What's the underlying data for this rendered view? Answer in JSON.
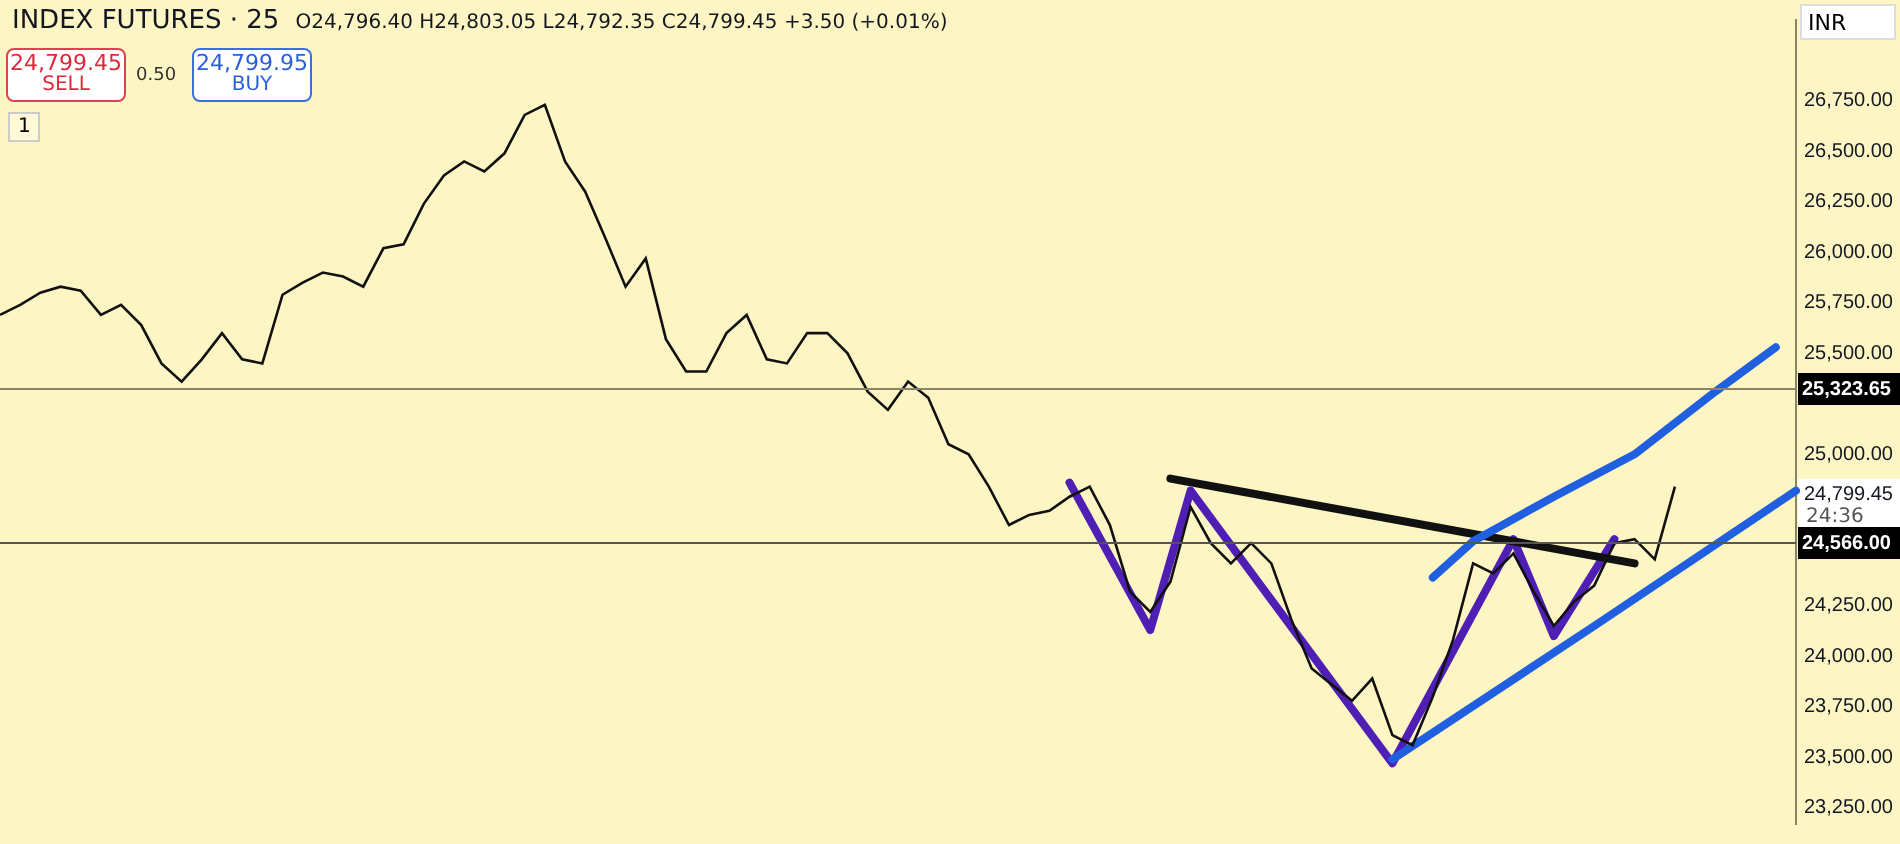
{
  "chart_data": {
    "type": "line",
    "title": "INDEX FUTURES · 25",
    "subtitle": "O24,796.40 H24,803.05 L24,792.35 C24,799.45 +3.50 (+0.01%)",
    "categories": [
      null,
      null,
      null,
      null,
      null,
      null,
      null,
      null,
      null,
      null,
      null,
      null,
      null,
      null,
      null,
      null,
      null,
      null,
      null,
      null,
      null,
      null,
      null,
      null,
      null,
      null,
      null,
      null,
      null,
      null,
      null,
      null,
      null,
      null,
      null,
      null,
      null,
      null,
      null,
      null,
      null,
      null,
      null,
      null,
      null,
      null,
      null,
      null,
      null,
      null,
      null,
      null,
      null,
      null,
      null,
      null,
      null,
      null,
      null,
      null,
      null,
      null,
      null,
      null,
      null,
      null,
      null,
      null,
      null,
      null,
      null,
      null,
      null,
      null,
      null,
      null,
      null,
      null,
      null,
      null,
      null,
      null,
      null,
      null,
      null,
      null,
      null,
      null,
      null,
      null
    ],
    "series": [
      {
        "color": "#111111",
        "values": [
          25690,
          25740,
          25800,
          25830,
          25810,
          25690,
          25740,
          25640,
          25450,
          25360,
          25470,
          25600,
          25470,
          25450,
          25790,
          25850,
          25900,
          25880,
          25830,
          26020,
          26040,
          26240,
          26380,
          26450,
          26400,
          26490,
          26680,
          26730,
          26450,
          26300,
          26070,
          25830,
          25970,
          25570,
          25410,
          25410,
          25600,
          25690,
          25470,
          25450,
          25600,
          25600,
          25500,
          25310,
          25220,
          25360,
          25280,
          25050,
          25000,
          24840,
          24650,
          24700,
          24720,
          24790,
          24840,
          24650,
          24320,
          24220,
          24370,
          24740,
          24560,
          24460,
          24560,
          24460,
          24180,
          23940,
          23860,
          23780,
          23890,
          23610,
          23560,
          23800,
          24080,
          24460,
          24410,
          24510,
          24320,
          24150,
          24270,
          24350,
          24560,
          24580,
          24480,
          24840,
          null,
          null,
          null,
          null,
          null,
          null
        ]
      },
      {
        "color": "#4f1fb5",
        "values": [
          null,
          null,
          null,
          null,
          null,
          null,
          null,
          null,
          null,
          null,
          null,
          null,
          null,
          null,
          null,
          null,
          null,
          null,
          null,
          null,
          null,
          null,
          null,
          null,
          null,
          null,
          null,
          null,
          null,
          null,
          null,
          null,
          null,
          null,
          null,
          null,
          null,
          null,
          null,
          null,
          null,
          null,
          null,
          null,
          null,
          null,
          null,
          null,
          null,
          null,
          null,
          null,
          null,
          24860,
          null,
          null,
          null,
          24130,
          null,
          24820,
          null,
          null,
          null,
          null,
          null,
          null,
          null,
          null,
          null,
          23470,
          null,
          null,
          null,
          null,
          null,
          24580,
          null,
          24100,
          null,
          null,
          24580,
          null,
          null,
          null,
          null,
          null,
          null,
          null,
          null,
          null
        ]
      },
      {
        "color": "#111111",
        "values": [
          null,
          null,
          null,
          null,
          null,
          null,
          null,
          null,
          null,
          null,
          null,
          null,
          null,
          null,
          null,
          null,
          null,
          null,
          null,
          null,
          null,
          null,
          null,
          null,
          null,
          null,
          null,
          null,
          null,
          null,
          null,
          null,
          null,
          null,
          null,
          null,
          null,
          null,
          null,
          null,
          null,
          null,
          null,
          null,
          null,
          null,
          null,
          null,
          null,
          null,
          null,
          null,
          null,
          null,
          null,
          null,
          null,
          null,
          24880,
          null,
          null,
          null,
          null,
          null,
          null,
          null,
          null,
          null,
          null,
          null,
          null,
          null,
          null,
          null,
          null,
          null,
          null,
          null,
          null,
          null,
          null,
          24460,
          null,
          null,
          null,
          null,
          null,
          null,
          null,
          null
        ]
      },
      {
        "color": "#1f5fe0",
        "values": [
          null,
          null,
          null,
          null,
          null,
          null,
          null,
          null,
          null,
          null,
          null,
          null,
          null,
          null,
          null,
          null,
          null,
          null,
          null,
          null,
          null,
          null,
          null,
          null,
          null,
          null,
          null,
          null,
          null,
          null,
          null,
          null,
          null,
          null,
          null,
          null,
          null,
          null,
          null,
          null,
          null,
          null,
          null,
          null,
          null,
          null,
          null,
          null,
          null,
          null,
          null,
          null,
          null,
          null,
          null,
          null,
          null,
          null,
          null,
          null,
          null,
          null,
          null,
          null,
          null,
          null,
          null,
          null,
          null,
          null,
          null,
          24390,
          null,
          24570,
          null,
          null,
          null,
          24790,
          null,
          null,
          null,
          25000,
          null,
          null,
          null,
          25310,
          null,
          null,
          25530,
          null
        ]
      },
      {
        "color": "#1f5fe0",
        "values": [
          null,
          null,
          null,
          null,
          null,
          null,
          null,
          null,
          null,
          null,
          null,
          null,
          null,
          null,
          null,
          null,
          null,
          null,
          null,
          null,
          null,
          null,
          null,
          null,
          null,
          null,
          null,
          null,
          null,
          null,
          null,
          null,
          null,
          null,
          null,
          null,
          null,
          null,
          null,
          null,
          null,
          null,
          null,
          null,
          null,
          null,
          null,
          null,
          null,
          null,
          null,
          null,
          null,
          null,
          null,
          null,
          null,
          null,
          null,
          null,
          null,
          null,
          null,
          null,
          null,
          null,
          null,
          null,
          null,
          23490,
          null,
          null,
          null,
          null,
          null,
          null,
          null,
          null,
          null,
          24150,
          null,
          null,
          null,
          null,
          null,
          null,
          null,
          null,
          null,
          24820
        ]
      }
    ],
    "ylim": [
      23170,
      27150
    ],
    "yticks": [
      {
        "value": 26750,
        "label": "26,750.00"
      },
      {
        "value": 26500,
        "label": "26,500.00"
      },
      {
        "value": 26250,
        "label": "26,250.00"
      },
      {
        "value": 26000,
        "label": "26,000.00"
      },
      {
        "value": 25750,
        "label": "25,750.00"
      },
      {
        "value": 25500,
        "label": "25,500.00"
      },
      {
        "value": 25000,
        "label": "25,000.00"
      },
      {
        "value": 24799.45,
        "label": "24,799.45"
      },
      {
        "value": 24250,
        "label": "24,250.00"
      },
      {
        "value": 24000,
        "label": "24,000.00"
      },
      {
        "value": 23750,
        "label": "23,750.00"
      },
      {
        "value": 23500,
        "label": "23,500.00"
      },
      {
        "value": 23250,
        "label": "23,250.00"
      }
    ],
    "tick_labels": "y",
    "ref_lines": [
      {
        "axis": "y",
        "value": 25323.65,
        "label": "25,323.65",
        "color": "#8a8466"
      },
      {
        "axis": "y",
        "value": 24566,
        "label": "24,566.00",
        "color": "#555555"
      }
    ],
    "annotations": [
      "24,799.45",
      "SELL",
      "0.50",
      "24,799.95",
      "BUY",
      "1",
      "INR",
      "24:36"
    ],
    "legend": false,
    "grid": false
  }
}
